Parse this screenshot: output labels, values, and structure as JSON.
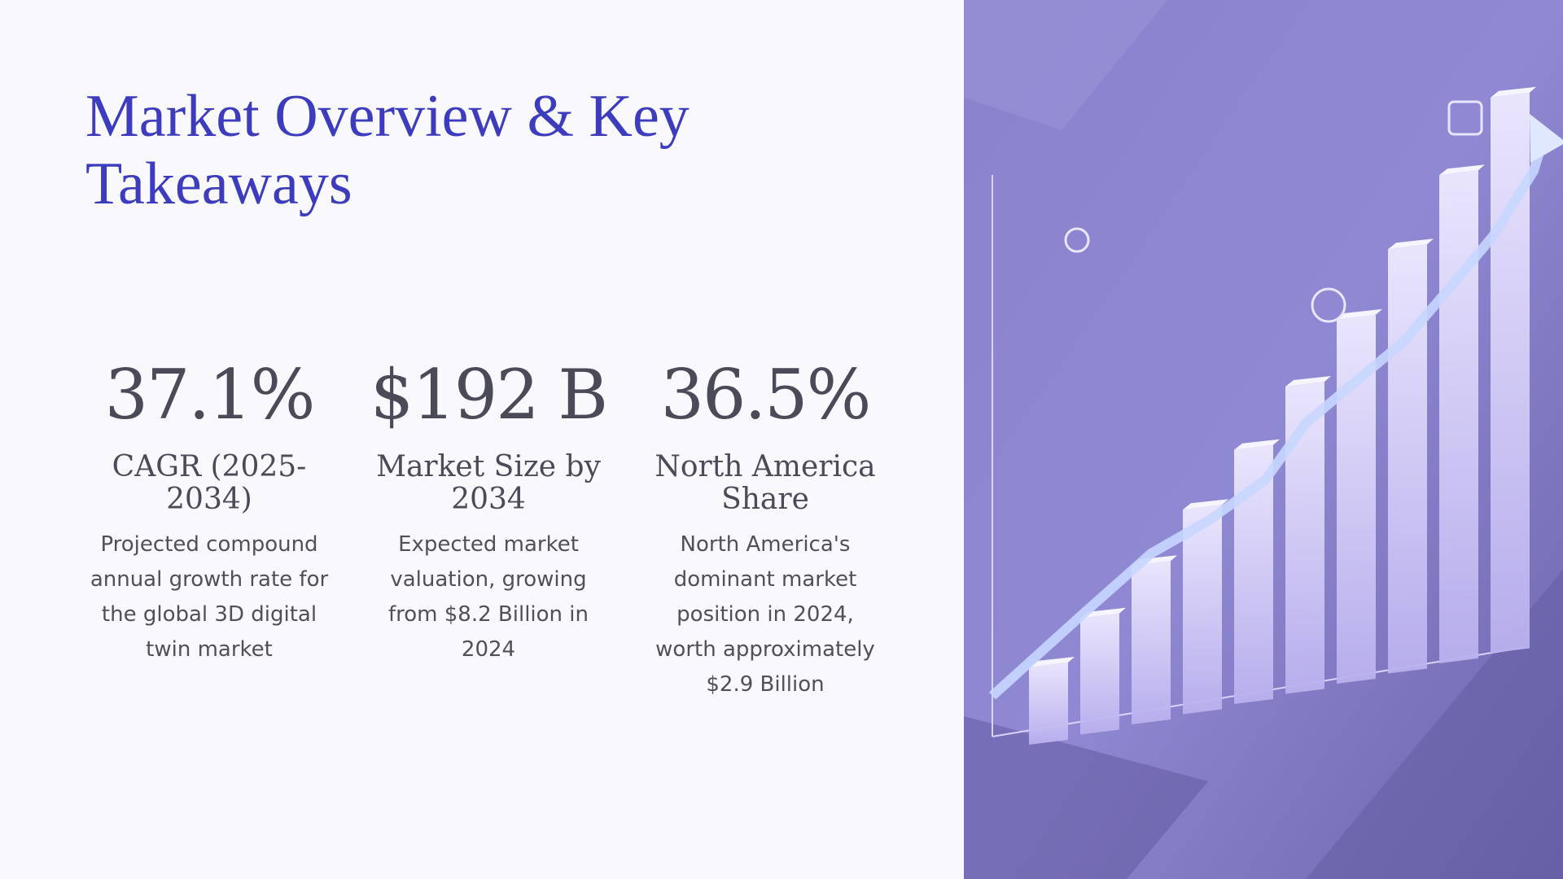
{
  "header": {
    "title": "Market Overview & Key Takeaways"
  },
  "stats": [
    {
      "value": "37.1%",
      "label": "CAGR (2025-2034)",
      "description": "Projected compound annual growth rate for the global 3D digital twin market"
    },
    {
      "value": "$192 B",
      "label": "Market Size by 2034",
      "description": "Expected market valuation, growing from $8.2 Billion in 2024"
    },
    {
      "value": "36.5%",
      "label": "North America Share",
      "description": "North America's dominant market position in 2024, worth approximately $2.9 Billion"
    }
  ]
}
